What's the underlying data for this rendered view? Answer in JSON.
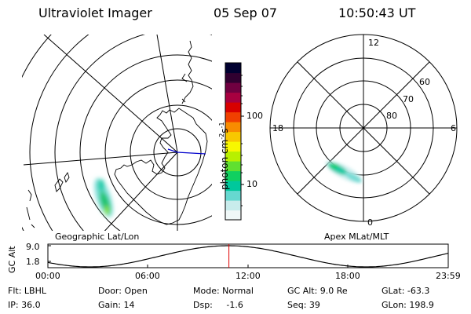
{
  "header": {
    "instrument": "Ultraviolet Imager",
    "date": "05 Sep 07",
    "time": "10:50:43 UT"
  },
  "left_panel": {
    "label": "Geographic Lat/Lon"
  },
  "right_panel": {
    "label": "Apex MLat/MLT",
    "hour_labels": {
      "top": "12",
      "right": "6",
      "bottom": "0",
      "left": "18"
    },
    "lat_labels": [
      "60",
      "70",
      "80"
    ]
  },
  "colorbar": {
    "unit_main": "photon cm",
    "unit_exp1": "-2",
    "unit_s": "s",
    "unit_exp2": "-1",
    "tick_labels": [
      "100",
      "10"
    ],
    "colors": [
      "#f0f8f8",
      "#c8ecec",
      "#66d8d0",
      "#00c89c",
      "#10d060",
      "#60e030",
      "#b8f000",
      "#f8f800",
      "#f8c800",
      "#f88c00",
      "#f04000",
      "#d80000",
      "#a80040",
      "#700040",
      "#300030",
      "#000030"
    ]
  },
  "altitude_plot": {
    "ylabel": "GC Alt",
    "y_ticks": [
      "9.0",
      "1.8"
    ],
    "x_ticks": [
      "00:00",
      "06:00",
      "12:00",
      "18:00",
      "23:59"
    ],
    "current_time_fraction": 0.4521,
    "line_color": "#000000",
    "marker_color": "#e00000"
  },
  "footer": {
    "filter": "Flt: LBHL",
    "ip": "IP: 36.0",
    "door": "Door: Open",
    "gain": "Gain: 14",
    "mode": "Mode: Normal",
    "dsp": "Dsp:     -1.6",
    "gc_alt": "GC Alt: 9.0 Re",
    "seq": "Seq: 39",
    "glat": "GLat: -63.3",
    "glon": "GLon: 198.9"
  }
}
